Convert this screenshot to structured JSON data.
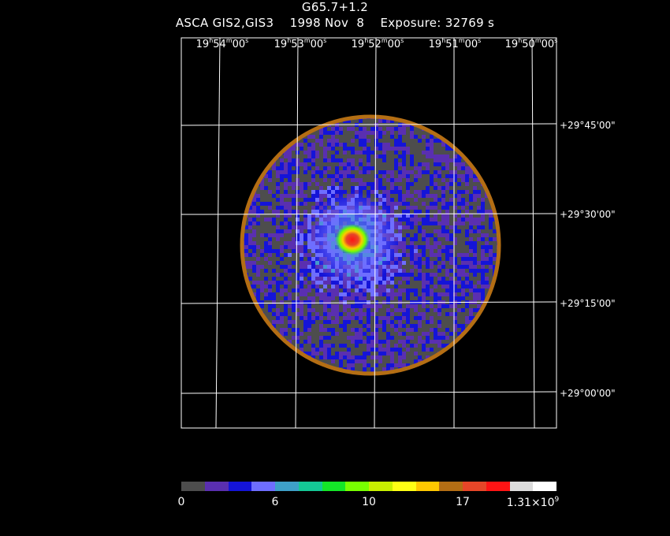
{
  "header": {
    "object_name": "G65.7+1.2",
    "instrument_line": "ASCA GIS2,GIS3    1998 Nov  8    Exposure: 32769 s"
  },
  "ra_axis": [
    {
      "h": "19",
      "m": "54",
      "s": "00"
    },
    {
      "h": "19",
      "m": "53",
      "s": "00"
    },
    {
      "h": "19",
      "m": "52",
      "s": "00"
    },
    {
      "h": "19",
      "m": "51",
      "s": "00"
    },
    {
      "h": "19",
      "m": "50",
      "s": "00"
    }
  ],
  "dec_axis": [
    "+29°45'00\"",
    "+29°30'00\"",
    "+29°15'00\"",
    "+29°00'00\""
  ],
  "colorbar": {
    "colors": [
      "#4d4d4d",
      "#5a2fb0",
      "#1414d8",
      "#6e6eff",
      "#3ea0c8",
      "#14c896",
      "#14e628",
      "#78ff00",
      "#c8f000",
      "#ffff14",
      "#ffc800",
      "#b46e14",
      "#e64628",
      "#ff1414",
      "#dcdcdc",
      "#ffffff"
    ],
    "tick_labels": [
      "0",
      "6",
      "10",
      "17"
    ],
    "max_mantissa": "1.31×10",
    "max_exponent": "9"
  }
}
